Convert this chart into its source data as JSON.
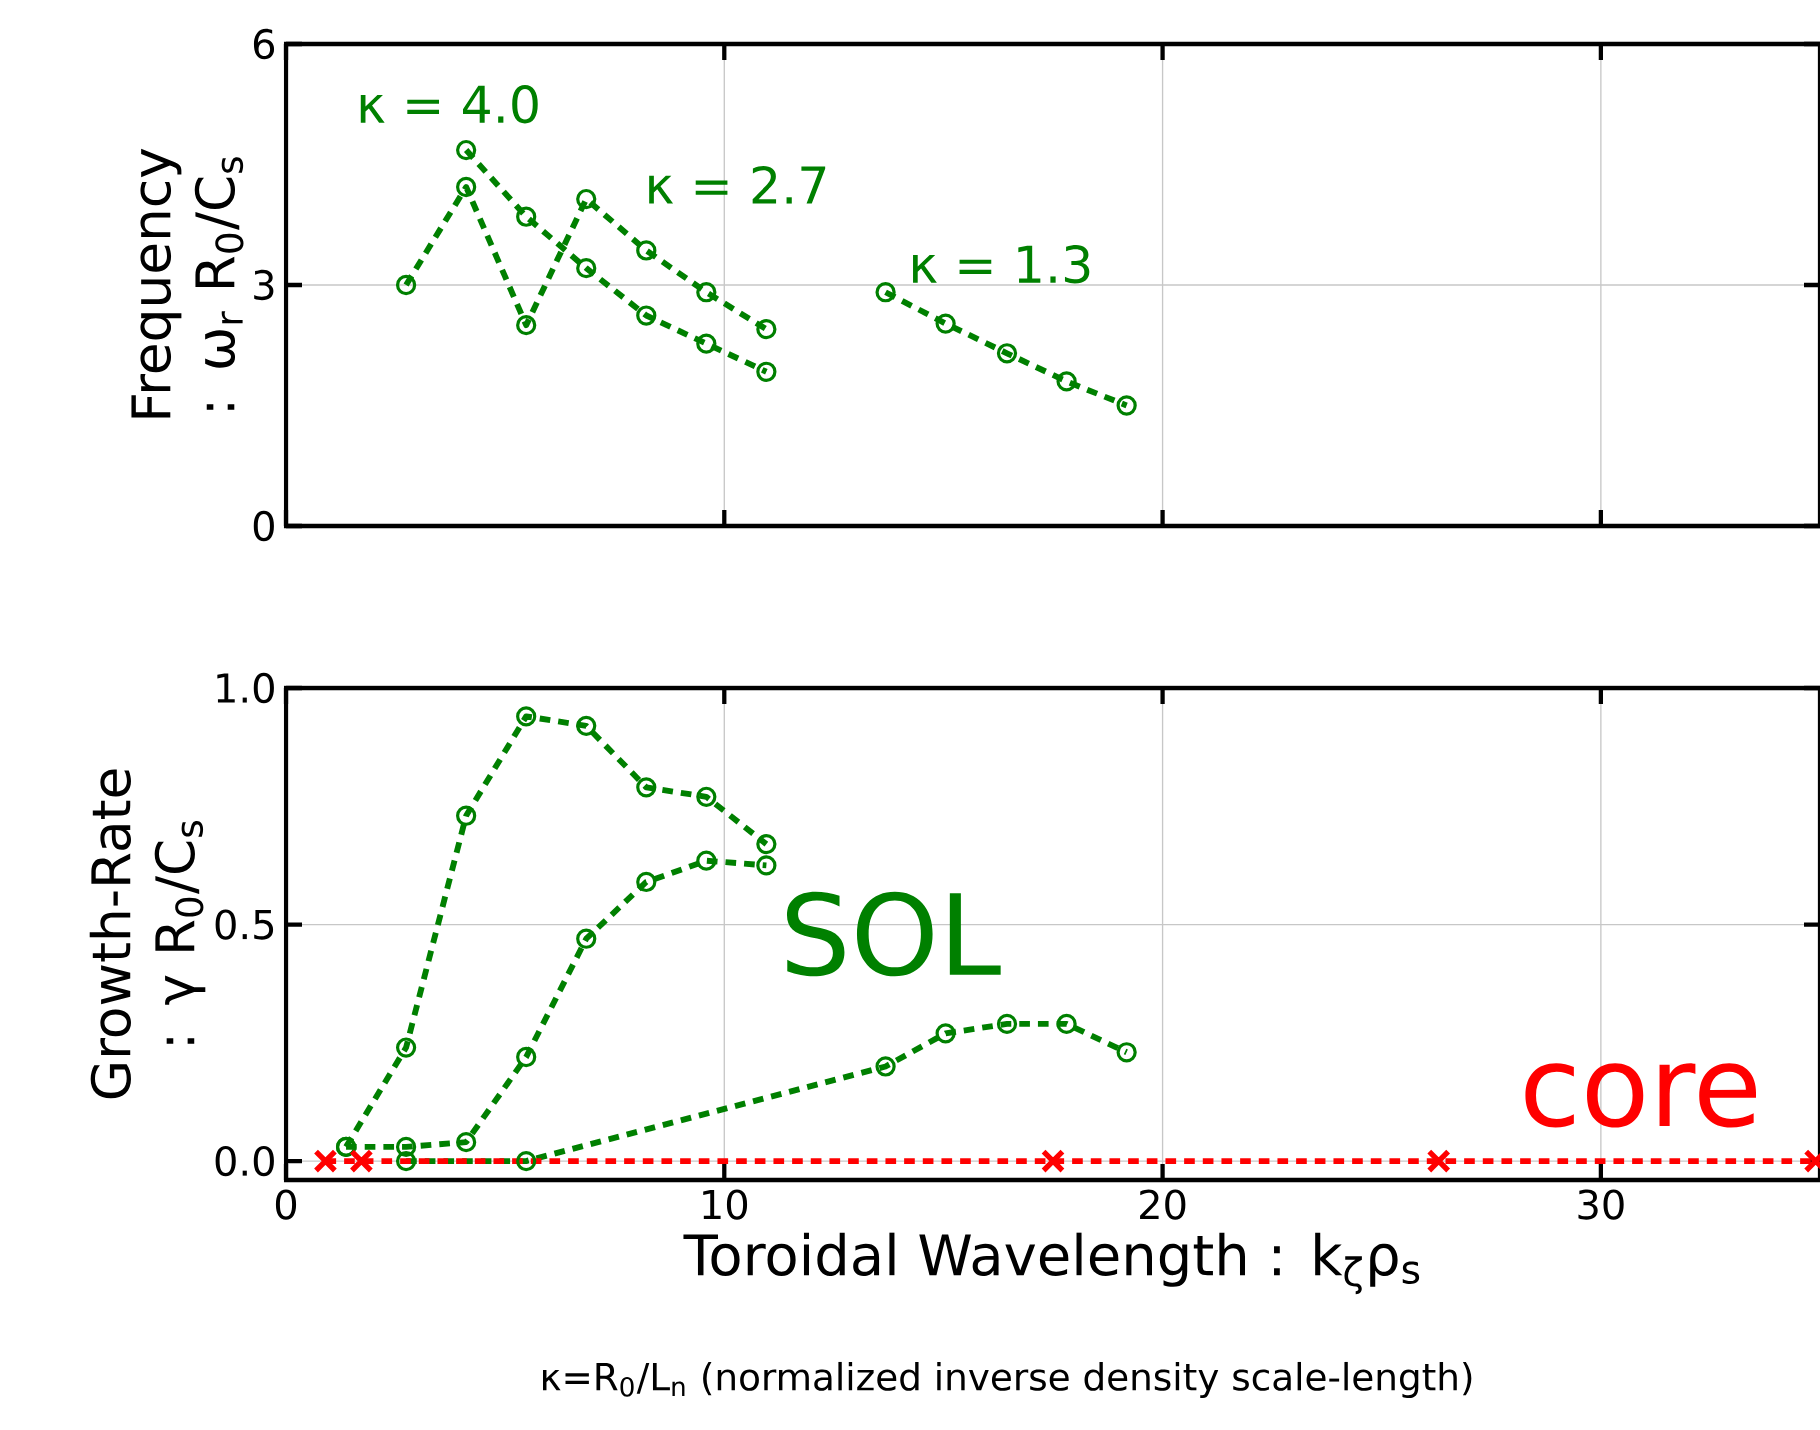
{
  "chart_data": [
    {
      "type": "line",
      "ylabel": "Frequency : ω$_{r}$ R$_{0}$/C$_{s}$",
      "xlim": [
        0,
        35
      ],
      "ylim": [
        0,
        6
      ],
      "xticks": [
        0,
        10,
        20,
        30
      ],
      "yticks": [
        0,
        3,
        6
      ],
      "tick_labels": "y",
      "grid": true,
      "line_style": "dashed",
      "series": [
        {
          "color": "#008000",
          "marker": "circle",
          "x": [
            2.74,
            4.11,
            5.48,
            6.85,
            8.22,
            9.59,
            10.96
          ],
          "values": [
            3.0,
            4.22,
            2.5,
            4.07,
            3.43,
            2.91,
            2.45
          ]
        },
        {
          "color": "#008000",
          "marker": "circle",
          "x": [
            4.11,
            5.48,
            6.85,
            8.22,
            9.59,
            10.96
          ],
          "values": [
            4.68,
            3.85,
            3.21,
            2.62,
            2.27,
            1.92
          ]
        },
        {
          "color": "#008000",
          "marker": "circle",
          "x": [
            13.68,
            15.05,
            16.45,
            17.81,
            19.18
          ],
          "values": [
            2.91,
            2.52,
            2.15,
            1.8,
            1.5
          ]
        }
      ],
      "annotations": [
        "κ = 4.0",
        "κ = 2.7",
        "κ = 1.3"
      ]
    },
    {
      "type": "line",
      "xlabel": "Toroidal Wavelength : k$_{ζ}$ρ$_{s}$",
      "ylabel": "Growth-Rate : γ R$_{0}$/C$_{s}$",
      "xlim": [
        0,
        35
      ],
      "ylim": [
        -0.04,
        1.0
      ],
      "xticks": [
        0,
        10,
        20,
        30
      ],
      "yticks": [
        {
          "value": 0,
          "label": "0.0"
        },
        {
          "value": 0.5,
          "label": "0.5"
        },
        {
          "value": 1.0,
          "label": "1.0"
        }
      ],
      "grid": true,
      "line_style": "dashed",
      "series": [
        {
          "color": "#008000",
          "marker": "circle",
          "x": [
            1.37,
            2.74,
            4.11,
            5.48,
            6.85,
            8.22,
            9.59,
            10.96
          ],
          "values": [
            0.03,
            0.24,
            0.73,
            0.94,
            0.92,
            0.79,
            0.77,
            0.67
          ]
        },
        {
          "color": "#008000",
          "marker": "circle",
          "x": [
            1.37,
            2.74,
            4.11,
            5.48,
            6.85,
            8.22,
            9.59,
            10.96
          ],
          "values": [
            0.03,
            0.03,
            0.04,
            0.22,
            0.47,
            0.59,
            0.635,
            0.625
          ]
        },
        {
          "color": "#008000",
          "marker": "circle",
          "x": [
            2.74,
            5.48,
            13.68,
            15.05,
            16.45,
            17.81,
            19.18
          ],
          "values": [
            0.0,
            0.0,
            0.2,
            0.27,
            0.29,
            0.29,
            0.23
          ]
        },
        {
          "color": "#ff0000",
          "marker": "cross",
          "x": [
            0.9,
            1.72,
            17.5,
            26.3,
            34.9
          ],
          "values": [
            0,
            0,
            0,
            0,
            0
          ]
        }
      ],
      "annotations": [
        "SOL",
        "core",
        "κ=R$_{0}$/L$_{n}$ (normalized inverse density scale-length)"
      ]
    }
  ]
}
